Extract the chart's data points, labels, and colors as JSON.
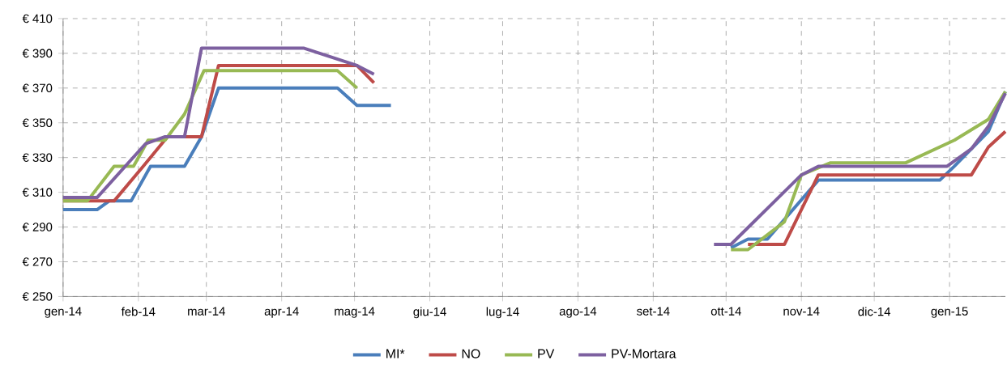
{
  "chart_data": {
    "type": "line",
    "xlim": [
      "2014-01-01",
      "2015-01-24"
    ],
    "xticks": [
      {
        "value": "2014-01-01",
        "label": "gen-14"
      },
      {
        "value": "2014-02-01",
        "label": "feb-14"
      },
      {
        "value": "2014-03-01",
        "label": "mar-14"
      },
      {
        "value": "2014-04-01",
        "label": "apr-14"
      },
      {
        "value": "2014-05-01",
        "label": "mag-14"
      },
      {
        "value": "2014-06-01",
        "label": "giu-14"
      },
      {
        "value": "2014-07-01",
        "label": "lug-14"
      },
      {
        "value": "2014-08-01",
        "label": "ago-14"
      },
      {
        "value": "2014-09-01",
        "label": "set-14"
      },
      {
        "value": "2014-10-01",
        "label": "ott-14"
      },
      {
        "value": "2014-11-01",
        "label": "nov-14"
      },
      {
        "value": "2014-12-01",
        "label": "dic-14"
      },
      {
        "value": "2015-01-01",
        "label": "gen-15"
      }
    ],
    "ylim": [
      250,
      410
    ],
    "yticks": [
      {
        "value": 250,
        "label": "€ 250"
      },
      {
        "value": 270,
        "label": "€ 270"
      },
      {
        "value": 290,
        "label": "€ 290"
      },
      {
        "value": 310,
        "label": "€ 310"
      },
      {
        "value": 330,
        "label": "€ 330"
      },
      {
        "value": 350,
        "label": "€ 350"
      },
      {
        "value": 370,
        "label": "€ 370"
      },
      {
        "value": 390,
        "label": "€ 390"
      },
      {
        "value": 410,
        "label": "€ 410"
      }
    ],
    "grid": true,
    "legend": "bottom",
    "series": [
      {
        "name": "MI*",
        "color": "#4a7ebb",
        "x": [
          "2014-01-01",
          "2014-01-15",
          "2014-01-20",
          "2014-01-29",
          "2014-02-06",
          "2014-02-20",
          "2014-02-27",
          "2014-03-06",
          "2014-04-24",
          "2014-05-02",
          "2014-05-16",
          "2014-07-01",
          "2014-10-03",
          "2014-10-10",
          "2014-10-18",
          "2014-11-08",
          "2014-12-28",
          "2015-01-03",
          "2015-01-17",
          "2015-01-24"
        ],
        "values": [
          300,
          300,
          305,
          305,
          325,
          325,
          342,
          370,
          370,
          360,
          360,
          null,
          278,
          283,
          283,
          317,
          317,
          325,
          345,
          368
        ]
      },
      {
        "name": "NO",
        "color": "#be4b48",
        "x": [
          "2014-01-01",
          "2014-01-22",
          "2014-02-03",
          "2014-02-13",
          "2014-02-27",
          "2014-03-06",
          "2014-05-02",
          "2014-05-09",
          "2014-07-01",
          "2014-10-10",
          "2014-10-25",
          "2014-11-08",
          "2015-01-10",
          "2015-01-17",
          "2015-01-24"
        ],
        "values": [
          305,
          305,
          325,
          342,
          342,
          383,
          383,
          373,
          null,
          280,
          280,
          320,
          320,
          336,
          345
        ]
      },
      {
        "name": "PV",
        "color": "#98b954",
        "x": [
          "2014-01-01",
          "2014-01-11",
          "2014-01-22",
          "2014-01-30",
          "2014-02-05",
          "2014-02-12",
          "2014-02-20",
          "2014-02-28",
          "2014-04-24",
          "2014-05-02",
          "2014-07-01",
          "2014-10-03",
          "2014-10-10",
          "2014-10-25",
          "2014-11-01",
          "2014-11-13",
          "2014-12-14",
          "2015-01-03",
          "2015-01-17",
          "2015-01-24"
        ],
        "values": [
          305,
          305,
          325,
          325,
          340,
          340,
          355,
          380,
          380,
          370,
          null,
          277,
          277,
          293,
          320,
          327,
          327,
          340,
          352,
          368
        ]
      },
      {
        "name": "PV-Mortara",
        "color": "#7d60a0",
        "x": [
          "2014-01-01",
          "2014-01-15",
          "2014-02-04",
          "2014-02-12",
          "2014-02-20",
          "2014-02-27",
          "2014-04-10",
          "2014-05-02",
          "2014-05-09",
          "2014-07-01",
          "2014-09-26",
          "2014-10-03",
          "2014-11-01",
          "2014-11-08",
          "2014-12-31",
          "2015-01-10",
          "2015-01-17",
          "2015-01-24"
        ],
        "values": [
          307,
          307,
          338,
          342,
          342,
          393,
          393,
          383,
          378,
          null,
          280,
          280,
          320,
          325,
          325,
          335,
          348,
          367
        ]
      }
    ]
  }
}
